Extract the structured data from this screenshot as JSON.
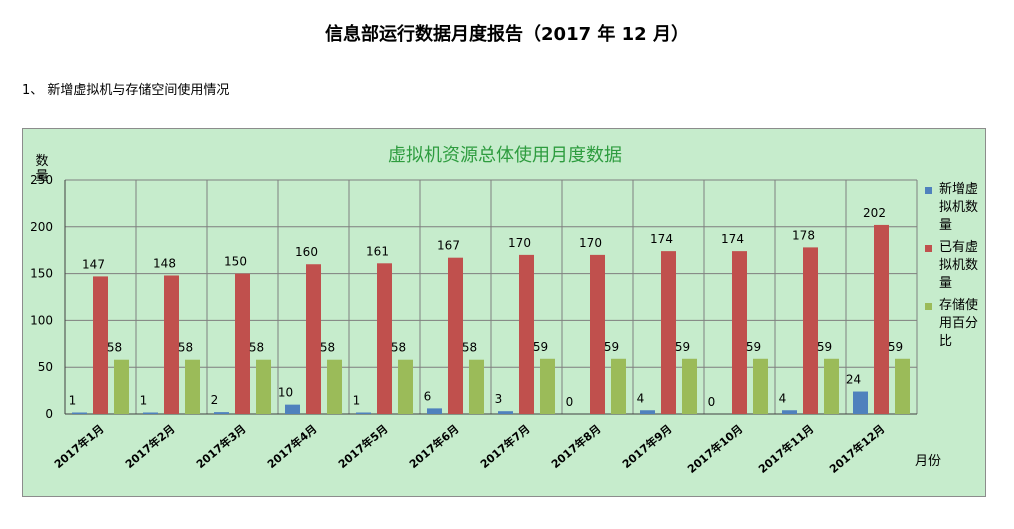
{
  "page": {
    "title": "信息部运行数据月度报告（2017 年 12 月）",
    "section_heading": "1、 新增虚拟机与存储空间使用情况"
  },
  "chart_data": {
    "type": "bar",
    "title": "虚拟机资源总体使用月度数据",
    "xlabel": "月份",
    "ylabel": "数量",
    "ylim": [
      0,
      250
    ],
    "yticks": [
      0,
      50,
      100,
      150,
      200,
      250
    ],
    "grid": true,
    "legend_position": "right",
    "categories": [
      "2017年1月",
      "2017年2月",
      "2017年3月",
      "2017年4月",
      "2017年5月",
      "2017年6月",
      "2017年7月",
      "2017年8月",
      "2017年9月",
      "2017年10月",
      "2017年11月",
      "2017年12月"
    ],
    "series": [
      {
        "name": "新增虚拟机数量",
        "color": "#4f81bd",
        "values": [
          1,
          1,
          2,
          10,
          1,
          6,
          3,
          0,
          4,
          0,
          4,
          24
        ]
      },
      {
        "name": "已有虚拟机数量",
        "color": "#c0504d",
        "values": [
          147,
          148,
          150,
          160,
          161,
          167,
          170,
          170,
          174,
          174,
          178,
          202
        ]
      },
      {
        "name": "存储使用百分比",
        "color": "#9bbb59",
        "values": [
          58,
          58,
          58,
          58,
          58,
          58,
          59,
          59,
          59,
          59,
          59,
          59
        ]
      }
    ]
  }
}
